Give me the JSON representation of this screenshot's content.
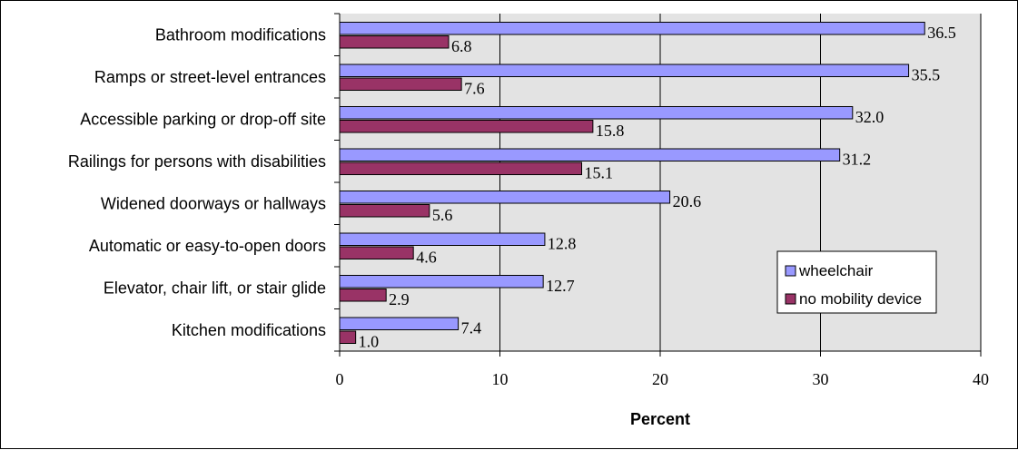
{
  "chart_data": {
    "type": "bar",
    "orientation": "horizontal",
    "categories": [
      "Bathroom modifications",
      "Ramps or street-level entrances",
      "Accessible parking or drop-off site",
      "Railings for persons with disabilities",
      "Widened doorways or hallways",
      "Automatic or easy-to-open doors",
      "Elevator, chair lift, or stair glide",
      "Kitchen modifications"
    ],
    "series": [
      {
        "name": "wheelchair",
        "values": [
          36.5,
          35.5,
          32.0,
          31.2,
          20.6,
          12.8,
          12.7,
          7.4
        ],
        "labels": [
          "36.5",
          "35.5",
          "32.0",
          "31.2",
          "20.6",
          "12.8",
          "12.7",
          "7.4"
        ],
        "color": "#9999ff"
      },
      {
        "name": "no mobility device",
        "values": [
          6.8,
          7.6,
          15.8,
          15.1,
          5.6,
          4.6,
          2.9,
          1.0
        ],
        "labels": [
          "6.8",
          "7.6",
          "15.8",
          "15.1",
          "5.6",
          "4.6",
          "2.9",
          "1.0"
        ],
        "color": "#993366"
      }
    ],
    "xlabel": "Percent",
    "xlim": [
      0,
      40
    ],
    "xticks": [
      0,
      10,
      20,
      30,
      40
    ],
    "grid": true,
    "plot_background": "#e3e3e3",
    "legend_position": "bottom-right"
  }
}
